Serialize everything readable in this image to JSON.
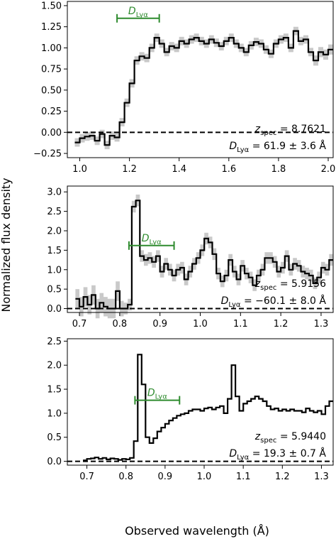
{
  "figure": {
    "ylabel": "Normalized flux density",
    "xlabel": "Observed wavelength (Å)",
    "label_color": "#000000",
    "spectrum_color": "#000000",
    "error_color": "#c0c0c0",
    "dlya_color": "#2e8b2e"
  },
  "chart_data": [
    {
      "type": "line",
      "xlim": [
        0.95,
        2.02
      ],
      "ylim": [
        -0.3,
        1.55
      ],
      "xticks": [
        "1.0",
        "1.2",
        "1.4",
        "1.6",
        "1.8",
        "2.0"
      ],
      "xtick_values": [
        1.0,
        1.2,
        1.4,
        1.6,
        1.8,
        2.0
      ],
      "yticks": [
        "−0.25",
        "0.00",
        "0.25",
        "0.50",
        "0.75",
        "1.00",
        "1.25",
        "1.50"
      ],
      "ytick_values": [
        -0.25,
        0.0,
        0.25,
        0.5,
        0.75,
        1.0,
        1.25,
        1.5
      ],
      "annotation_z": "z_spec = 8.7621",
      "annotation_d": "D_Lyα = 61.9 ± 3.6 Å",
      "dlya_label": "D_Lyα",
      "dlya_range": [
        1.15,
        1.32
      ],
      "dlya_y": 1.35,
      "zero_line": 0,
      "has_error_band": true,
      "series": [
        {
          "x": [
            0.99,
            1.01,
            1.03,
            1.05,
            1.07,
            1.09,
            1.11,
            1.13,
            1.15,
            1.17,
            1.19,
            1.21,
            1.23,
            1.25,
            1.27,
            1.29,
            1.31,
            1.33,
            1.35,
            1.37,
            1.39,
            1.41,
            1.43,
            1.45,
            1.47,
            1.49,
            1.51,
            1.53,
            1.55,
            1.57,
            1.59,
            1.61,
            1.63,
            1.65,
            1.67,
            1.69,
            1.71,
            1.73,
            1.75,
            1.77,
            1.79,
            1.81,
            1.83,
            1.85,
            1.87,
            1.89,
            1.91,
            1.93,
            1.95,
            1.97,
            1.99,
            2.01
          ],
          "y": [
            -0.12,
            -0.07,
            -0.05,
            -0.04,
            -0.1,
            -0.02,
            -0.15,
            -0.04,
            -0.06,
            0.12,
            0.35,
            0.58,
            0.85,
            0.9,
            0.88,
            1.0,
            1.12,
            1.05,
            0.95,
            1.02,
            1.0,
            1.08,
            1.05,
            1.1,
            1.12,
            1.08,
            1.05,
            1.1,
            1.06,
            1.02,
            1.08,
            1.12,
            1.05,
            1.0,
            0.95,
            1.03,
            1.07,
            1.05,
            0.98,
            0.93,
            1.05,
            1.1,
            1.12,
            1.0,
            1.2,
            1.08,
            1.1,
            0.95,
            0.85,
            0.95,
            0.92,
            0.98
          ],
          "err": [
            0.05,
            0.05,
            0.05,
            0.05,
            0.05,
            0.05,
            0.05,
            0.05,
            0.05,
            0.05,
            0.05,
            0.05,
            0.05,
            0.05,
            0.05,
            0.05,
            0.05,
            0.05,
            0.05,
            0.05,
            0.05,
            0.05,
            0.05,
            0.05,
            0.05,
            0.05,
            0.05,
            0.05,
            0.05,
            0.05,
            0.05,
            0.05,
            0.05,
            0.05,
            0.05,
            0.05,
            0.05,
            0.05,
            0.05,
            0.05,
            0.05,
            0.05,
            0.05,
            0.05,
            0.05,
            0.05,
            0.05,
            0.05,
            0.06,
            0.06,
            0.06,
            0.06
          ]
        }
      ]
    },
    {
      "type": "line",
      "xlim": [
        0.67,
        1.33
      ],
      "ylim": [
        -0.1,
        3.15
      ],
      "xticks": [
        "0.7",
        "0.8",
        "0.9",
        "1.0",
        "1.1",
        "1.2",
        "1.3"
      ],
      "xtick_values": [
        0.7,
        0.8,
        0.9,
        1.0,
        1.1,
        1.2,
        1.3
      ],
      "yticks": [
        "0.0",
        "0.5",
        "1.0",
        "1.5",
        "2.0",
        "2.5",
        "3.0"
      ],
      "ytick_values": [
        0.0,
        0.5,
        1.0,
        1.5,
        2.0,
        2.5,
        3.0
      ],
      "annotation_z": "z_spec = 5.9156",
      "annotation_d": "D_Lyα = −60.1 ± 8.0 Å",
      "dlya_label": "D_Lyα",
      "dlya_range": [
        0.823,
        0.935
      ],
      "dlya_y": 1.62,
      "zero_line": 0,
      "has_error_band": true,
      "series": [
        {
          "x": [
            0.695,
            0.705,
            0.715,
            0.725,
            0.735,
            0.745,
            0.755,
            0.765,
            0.775,
            0.785,
            0.795,
            0.805,
            0.815,
            0.825,
            0.835,
            0.845,
            0.855,
            0.865,
            0.875,
            0.885,
            0.895,
            0.905,
            0.915,
            0.925,
            0.935,
            0.945,
            0.955,
            0.965,
            0.975,
            0.985,
            0.995,
            1.005,
            1.015,
            1.025,
            1.035,
            1.045,
            1.055,
            1.065,
            1.075,
            1.085,
            1.095,
            1.105,
            1.115,
            1.125,
            1.135,
            1.145,
            1.155,
            1.165,
            1.175,
            1.185,
            1.195,
            1.205,
            1.215,
            1.225,
            1.235,
            1.245,
            1.255,
            1.265,
            1.275,
            1.285,
            1.295,
            1.305,
            1.315,
            1.325
          ],
          "y": [
            0.25,
            0.05,
            0.3,
            0.1,
            0.35,
            0.0,
            0.15,
            0.05,
            0.0,
            0.0,
            0.45,
            0.0,
            0.0,
            0.1,
            2.62,
            2.78,
            1.35,
            1.25,
            1.3,
            1.2,
            1.35,
            0.95,
            1.15,
            1.0,
            0.85,
            1.0,
            1.05,
            0.75,
            0.95,
            1.15,
            1.3,
            1.5,
            1.8,
            1.7,
            1.4,
            0.9,
            0.7,
            0.85,
            1.25,
            0.95,
            0.75,
            1.1,
            0.9,
            0.8,
            0.6,
            0.85,
            1.0,
            1.3,
            1.3,
            1.2,
            0.95,
            1.05,
            1.35,
            1.0,
            1.15,
            1.1,
            0.95,
            0.9,
            0.85,
            0.65,
            0.8,
            1.05,
            1.0,
            1.25
          ],
          "err": [
            0.25,
            0.25,
            0.25,
            0.25,
            0.25,
            0.25,
            0.25,
            0.25,
            0.25,
            0.25,
            0.25,
            0.2,
            0.15,
            0.15,
            0.15,
            0.15,
            0.15,
            0.15,
            0.15,
            0.15,
            0.15,
            0.15,
            0.15,
            0.15,
            0.15,
            0.15,
            0.15,
            0.15,
            0.15,
            0.15,
            0.15,
            0.15,
            0.15,
            0.15,
            0.15,
            0.15,
            0.15,
            0.15,
            0.15,
            0.15,
            0.15,
            0.15,
            0.15,
            0.15,
            0.15,
            0.15,
            0.15,
            0.15,
            0.15,
            0.15,
            0.15,
            0.15,
            0.15,
            0.15,
            0.15,
            0.15,
            0.15,
            0.15,
            0.15,
            0.15,
            0.15,
            0.15,
            0.15,
            0.15
          ]
        }
      ]
    },
    {
      "type": "line",
      "xlim": [
        0.65,
        1.33
      ],
      "ylim": [
        -0.08,
        2.55
      ],
      "xticks": [
        "0.7",
        "0.8",
        "0.9",
        "1.0",
        "1.1",
        "1.2",
        "1.3"
      ],
      "xtick_values": [
        0.7,
        0.8,
        0.9,
        1.0,
        1.1,
        1.2,
        1.3
      ],
      "yticks": [
        "0.0",
        "0.5",
        "1.0",
        "1.5",
        "2.0",
        "2.5"
      ],
      "ytick_values": [
        0.0,
        0.5,
        1.0,
        1.5,
        2.0,
        2.5
      ],
      "annotation_z": "z_spec = 5.9440",
      "annotation_d": "D_Lyα = 19.3 ± 0.7 Å",
      "dlya_label": "D_Lyα",
      "dlya_range": [
        0.823,
        0.937
      ],
      "dlya_y": 1.27,
      "zero_line": 0,
      "has_error_band": false,
      "series": [
        {
          "x": [
            0.695,
            0.705,
            0.715,
            0.725,
            0.735,
            0.745,
            0.755,
            0.765,
            0.775,
            0.785,
            0.795,
            0.805,
            0.815,
            0.825,
            0.835,
            0.845,
            0.855,
            0.865,
            0.875,
            0.885,
            0.895,
            0.905,
            0.915,
            0.925,
            0.935,
            0.945,
            0.955,
            0.965,
            0.975,
            0.985,
            0.995,
            1.005,
            1.015,
            1.025,
            1.035,
            1.045,
            1.055,
            1.065,
            1.075,
            1.085,
            1.095,
            1.105,
            1.115,
            1.125,
            1.135,
            1.145,
            1.155,
            1.165,
            1.175,
            1.185,
            1.195,
            1.205,
            1.215,
            1.225,
            1.235,
            1.245,
            1.255,
            1.265,
            1.275,
            1.285,
            1.295,
            1.305,
            1.315,
            1.325
          ],
          "y": [
            0.02,
            0.05,
            0.06,
            0.08,
            0.05,
            0.07,
            0.04,
            0.06,
            0.05,
            0.03,
            0.05,
            0.04,
            0.07,
            0.42,
            2.22,
            1.6,
            0.5,
            0.38,
            0.48,
            0.62,
            0.7,
            0.78,
            0.85,
            0.9,
            0.95,
            0.98,
            1.0,
            1.05,
            1.08,
            1.08,
            1.05,
            1.1,
            1.12,
            1.08,
            1.12,
            1.15,
            1.0,
            1.3,
            2.0,
            1.35,
            1.05,
            1.2,
            1.25,
            1.3,
            1.35,
            1.3,
            1.25,
            1.15,
            1.08,
            1.1,
            1.05,
            1.08,
            1.05,
            1.08,
            1.05,
            1.05,
            1.02,
            1.1,
            1.05,
            1.02,
            1.05,
            0.98,
            1.15,
            1.25
          ]
        }
      ]
    }
  ]
}
